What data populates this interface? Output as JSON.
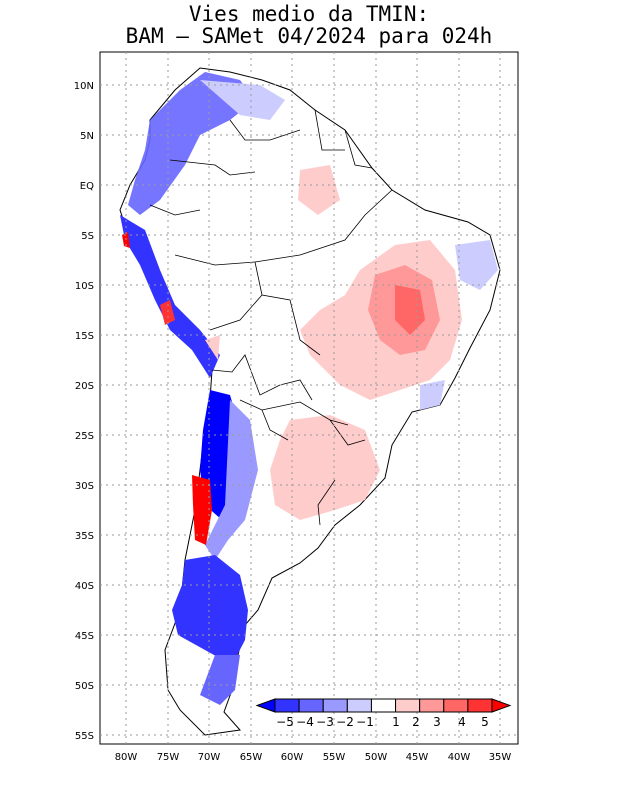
{
  "title": {
    "line1": "Vies medio da TMIN:",
    "line2": "BAM – SAMet 04/2024  para 024h"
  },
  "map": {
    "lat_labels": [
      "10N",
      "5N",
      "EQ",
      "5S",
      "10S",
      "15S",
      "20S",
      "25S",
      "30S",
      "35S",
      "40S",
      "45S",
      "50S",
      "55S"
    ],
    "lon_labels": [
      "80W",
      "75W",
      "70W",
      "65W",
      "60W",
      "55W",
      "50W",
      "45W",
      "40W",
      "35W"
    ],
    "lat_range": [
      -55.5,
      12.5
    ],
    "lon_range": [
      -83,
      -34.5
    ]
  },
  "colorbar": {
    "labels": [
      "−5",
      "−4",
      "−3",
      "−2",
      "−1",
      "1",
      "2",
      "3",
      "4",
      "5"
    ],
    "colors": [
      "#0000ff",
      "#3333ff",
      "#6666ff",
      "#9999ff",
      "#ccccff",
      "#ffffff",
      "#ffcccc",
      "#ff9999",
      "#ff6666",
      "#ff3333",
      "#ff0000"
    ]
  }
}
